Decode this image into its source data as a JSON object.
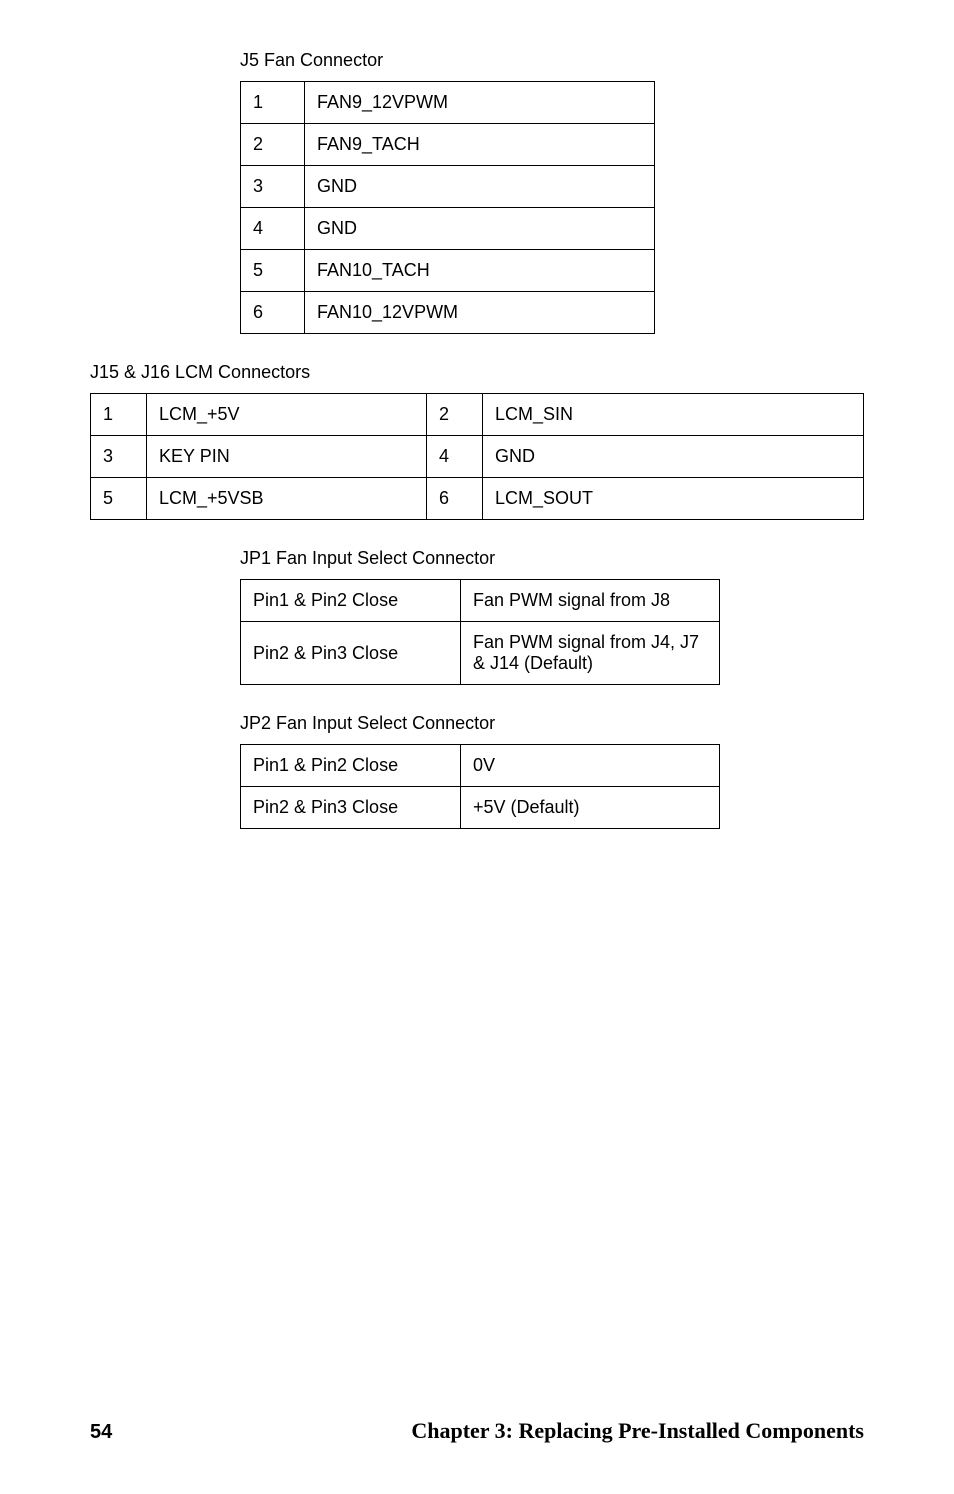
{
  "titles": {
    "t1": "J5 Fan Connector",
    "t2": "J15 & J16 LCM Connectors",
    "t3": "JP1 Fan Input Select Connector",
    "t4": "JP2 Fan Input Select Connector"
  },
  "t1": {
    "r0c0": "1",
    "r0c1": "FAN9_12VPWM",
    "r1c0": "2",
    "r1c1": "FAN9_TACH",
    "r2c0": "3",
    "r2c1": "GND",
    "r3c0": "4",
    "r3c1": "GND",
    "r4c0": "5",
    "r4c1": "FAN10_TACH",
    "r5c0": "6",
    "r5c1": "FAN10_12VPWM"
  },
  "t2": {
    "r0c0": "1",
    "r0c1": "LCM_+5V",
    "r0c2": "2",
    "r0c3": "LCM_SIN",
    "r1c0": "3",
    "r1c1": "KEY PIN",
    "r1c2": "4",
    "r1c3": "GND",
    "r2c0": "5",
    "r2c1": "LCM_+5VSB",
    "r2c2": "6",
    "r2c3": "LCM_SOUT"
  },
  "t3": {
    "r0c0": "Pin1 & Pin2 Close",
    "r0c1": "Fan PWM signal from J8",
    "r1c0": "Pin2 & Pin3 Close",
    "r1c1": "Fan PWM signal from J4, J7 & J14 (Default)"
  },
  "t4": {
    "r0c0": "Pin1 & Pin2 Close",
    "r0c1": "0V",
    "r1c0": "Pin2 & Pin3 Close",
    "r1c1": "+5V (Default)"
  },
  "footer": {
    "page": "54",
    "chapter": "Chapter 3: Replacing Pre-Installed Components"
  }
}
